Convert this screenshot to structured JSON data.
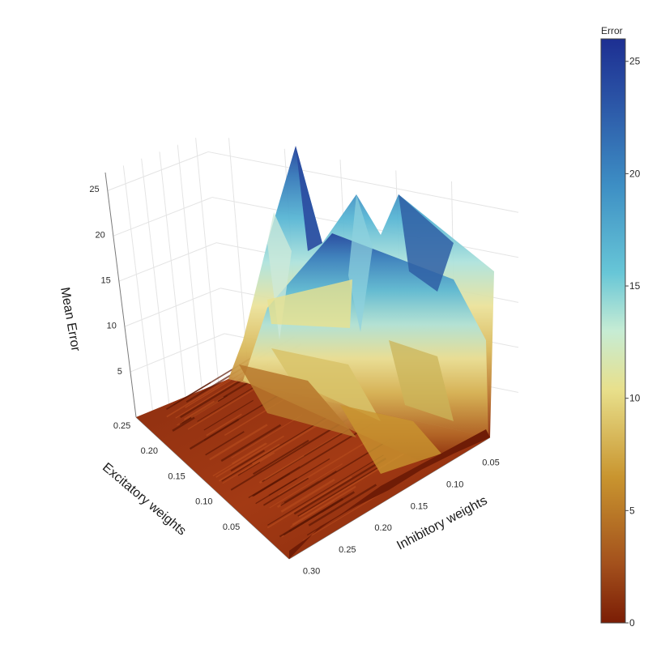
{
  "chart_data": {
    "type": "surface",
    "axes": {
      "x": {
        "label": "Excitatory weights",
        "range": [
          0,
          0.28
        ],
        "ticks": [
          "0.05",
          "0.10",
          "0.15",
          "0.20",
          "0.25"
        ]
      },
      "y": {
        "label": "Inhibitory weights",
        "range": [
          0.03,
          0.31
        ],
        "ticks": [
          "0.05",
          "0.10",
          "0.15",
          "0.20",
          "0.25",
          "0.30"
        ]
      },
      "z": {
        "label": "Mean Error",
        "range": [
          0,
          26
        ],
        "ticks": [
          "5",
          "10",
          "15",
          "20",
          "25"
        ]
      }
    },
    "surface_profile": {
      "inhibitory_weights": [
        0.05,
        0.1,
        0.15,
        0.2,
        0.25,
        0.3
      ],
      "max_error_by_excitatory": [
        {
          "excitatory": 0.25,
          "max_error": 25.5
        },
        {
          "excitatory": 0.2,
          "max_error": 22.0
        },
        {
          "excitatory": 0.15,
          "max_error": 15.0
        },
        {
          "excitatory": 0.1,
          "max_error": 9.0
        },
        {
          "excitatory": 0.05,
          "max_error": 3.0
        },
        {
          "excitatory": 0.0,
          "max_error": 0.5
        }
      ]
    },
    "colorbar": {
      "title": "Error",
      "range": [
        0,
        26
      ],
      "ticks": [
        "0",
        "5",
        "10",
        "15",
        "20",
        "25"
      ],
      "colors": [
        "#7b1d05",
        "#a3501c",
        "#c9952f",
        "#e8e08c",
        "#c6ecd4",
        "#67c6d7",
        "#3d8ec4",
        "#2a52a5",
        "#1d2f92"
      ]
    },
    "grid": true
  }
}
